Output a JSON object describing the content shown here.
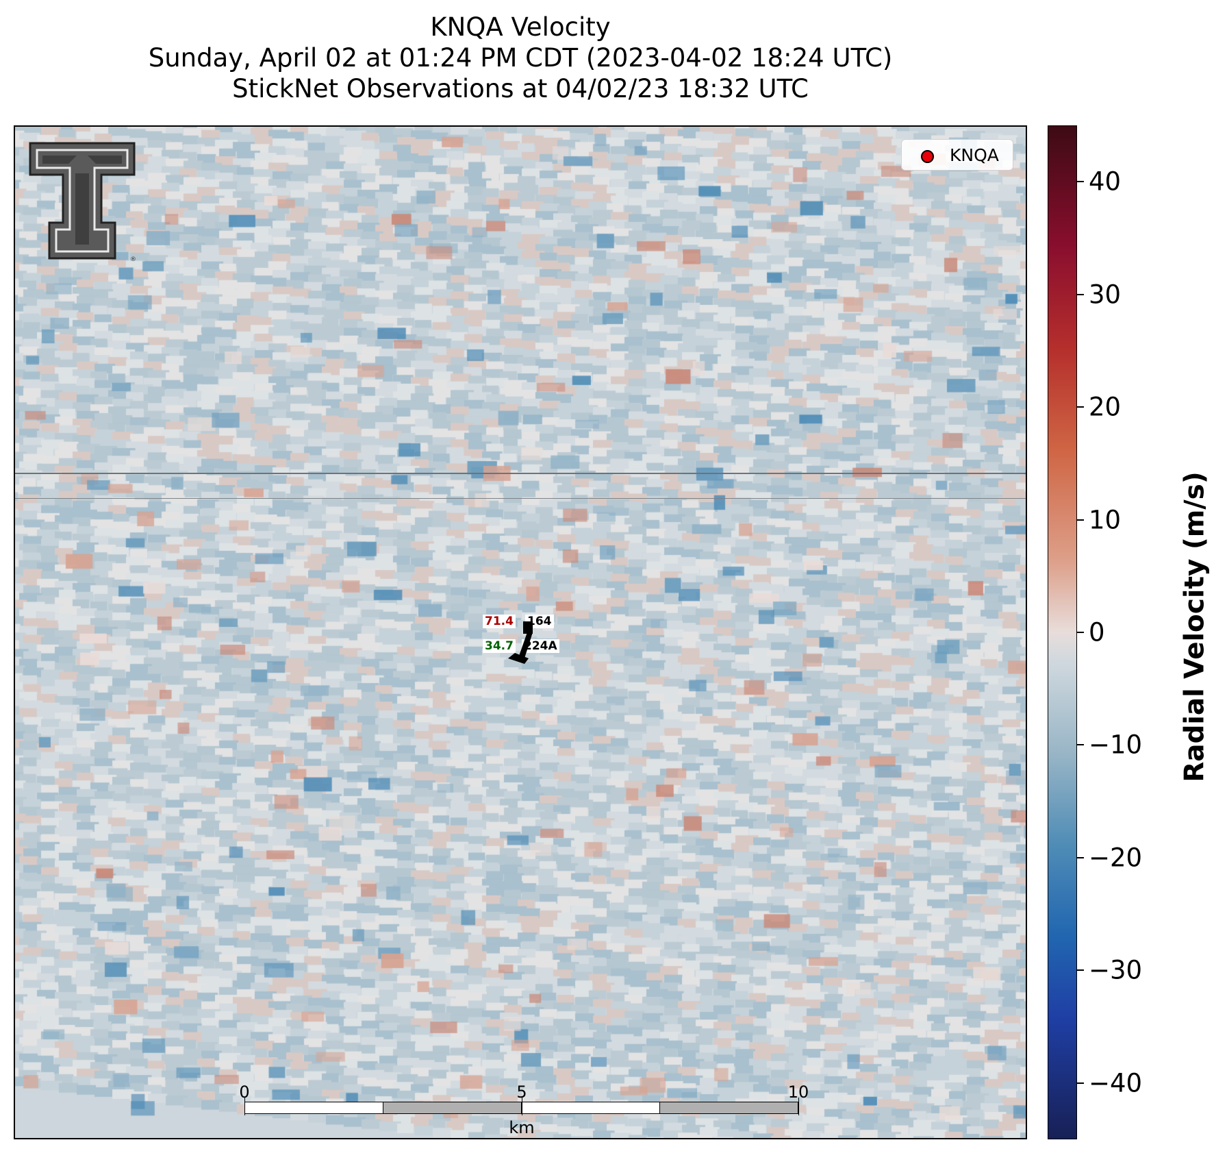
{
  "title": {
    "line1": "KNQA Velocity",
    "line2": "Sunday, April 02 at 01:24 PM CDT (2023-04-02 18:24 UTC)",
    "line3": "StickNet Observations at 04/02/23 18:32 UTC"
  },
  "legend": {
    "label": "KNQA",
    "marker_color": "#e8000b"
  },
  "station": {
    "top_left_value": "71.4",
    "top_right_value": "164",
    "bottom_left_value": "34.7",
    "bottom_right_value": "224A",
    "top_left_color": "#aa0000",
    "bottom_left_color": "#006400"
  },
  "scale_bar": {
    "ticks": [
      "0",
      "5",
      "10"
    ],
    "unit": "km"
  },
  "colorbar": {
    "label": "Radial Velocity (m/s)",
    "ticks": [
      "40",
      "30",
      "20",
      "10",
      "0",
      "−10",
      "−20",
      "−30",
      "−40"
    ],
    "range": [
      -45,
      45
    ],
    "colors": [
      "#182056",
      "#2166b0",
      "#4f8cb6",
      "#98b5c6",
      "#e8dddb",
      "#dda08a",
      "#cf6544",
      "#b52f2c",
      "#3d0b14"
    ]
  },
  "icons": {
    "logo": "texas-tech-double-t-logo",
    "station_plot": "wind-barb-icon"
  }
}
